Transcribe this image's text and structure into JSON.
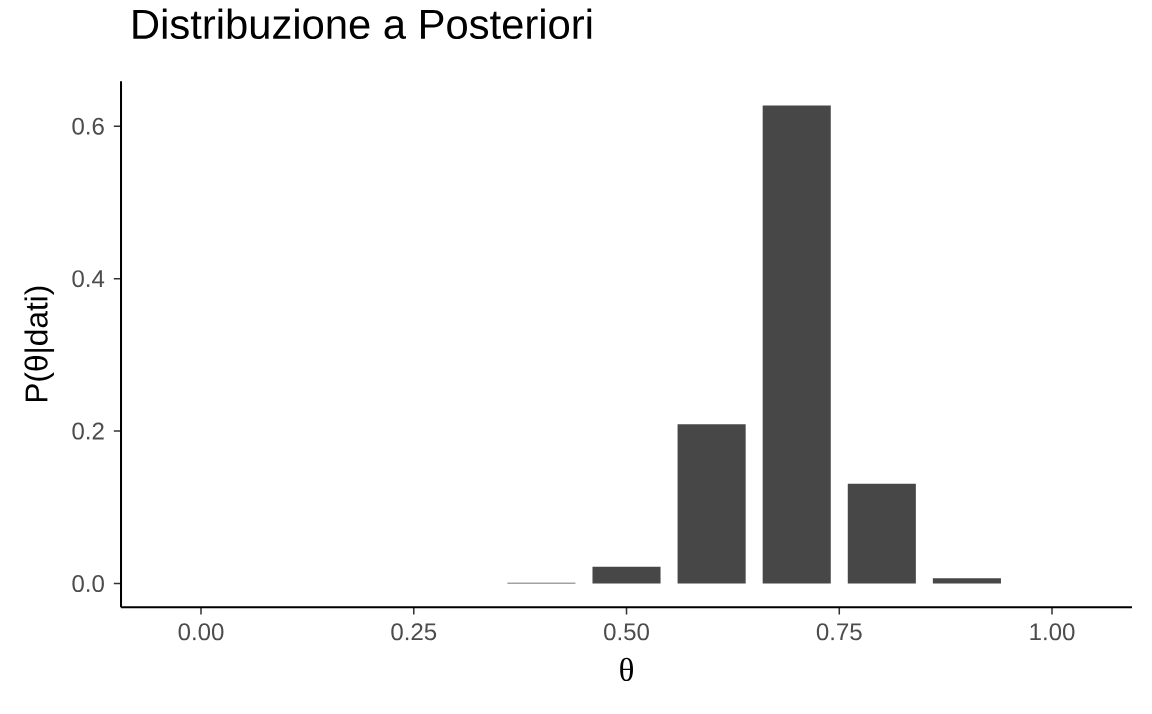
{
  "chart_data": {
    "type": "bar",
    "title": "Distribuzione a Posteriori",
    "xlabel": "θ",
    "ylabel": "P(θ|dati)",
    "x": [
      0.4,
      0.5,
      0.6,
      0.7,
      0.8,
      0.9
    ],
    "values": [
      0.001,
      0.022,
      0.209,
      0.627,
      0.131,
      0.007
    ],
    "color": "#474747",
    "xlim": [
      -0.094,
      1.094
    ],
    "ylim": [
      -0.031,
      0.659
    ],
    "xticks": [
      {
        "value": 0,
        "label": "0.00"
      },
      0.25,
      {
        "value": 0.5,
        "label": "0.50"
      },
      0.75,
      {
        "value": 1,
        "label": "1.00"
      }
    ],
    "yticks": [
      {
        "value": 0,
        "label": "0.0"
      },
      0.2,
      0.4,
      0.6
    ],
    "grid": false
  }
}
